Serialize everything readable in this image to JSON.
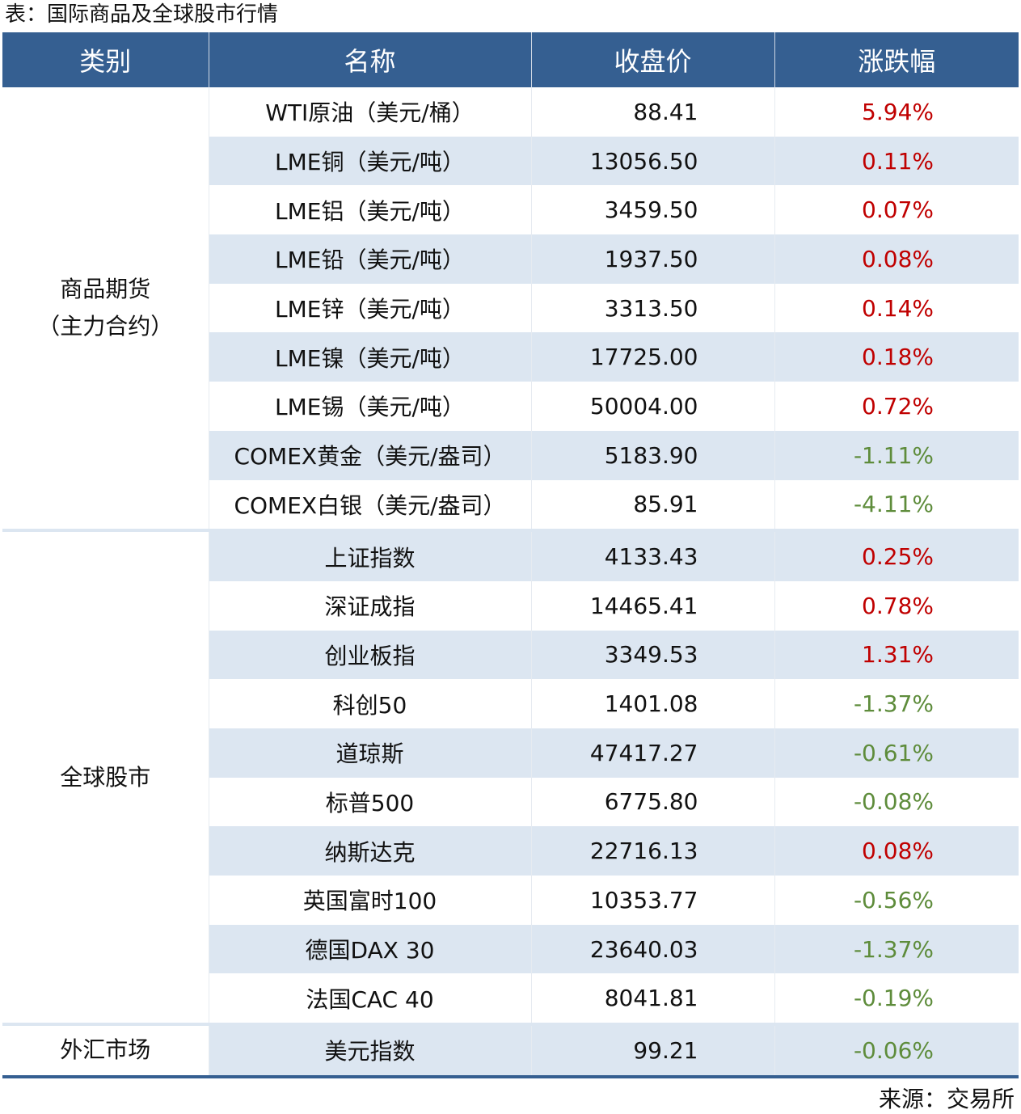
{
  "title": "表：国际商品及全球股市行情",
  "headers": [
    "类别",
    "名称",
    "收盘价",
    "涨跌幅"
  ],
  "colors": {
    "header_bg": "#355f91",
    "row_shade": "#dce6f1",
    "up": "#c00000",
    "down": "#5e8c3b"
  },
  "sections": [
    {
      "category_line1": "商品期货",
      "category_line2": "（主力合约）",
      "rows": [
        {
          "name": "WTI原油（美元/桶）",
          "close": "88.41",
          "change": "5.94%"
        },
        {
          "name": "LME铜（美元/吨）",
          "close": "13056.50",
          "change": "0.11%"
        },
        {
          "name": "LME铝（美元/吨）",
          "close": "3459.50",
          "change": "0.07%"
        },
        {
          "name": "LME铅（美元/吨）",
          "close": "1937.50",
          "change": "0.08%"
        },
        {
          "name": "LME锌（美元/吨）",
          "close": "3313.50",
          "change": "0.14%"
        },
        {
          "name": "LME镍（美元/吨）",
          "close": "17725.00",
          "change": "0.18%"
        },
        {
          "name": "LME锡（美元/吨）",
          "close": "50004.00",
          "change": "0.72%"
        },
        {
          "name": "COMEX黄金（美元/盎司）",
          "close": "5183.90",
          "change": "-1.11%"
        },
        {
          "name": "COMEX白银（美元/盎司）",
          "close": "85.91",
          "change": "-4.11%"
        }
      ]
    },
    {
      "category_line1": "全球股市",
      "category_line2": "",
      "rows": [
        {
          "name": "上证指数",
          "close": "4133.43",
          "change": "0.25%"
        },
        {
          "name": "深证成指",
          "close": "14465.41",
          "change": "0.78%"
        },
        {
          "name": "创业板指",
          "close": "3349.53",
          "change": "1.31%"
        },
        {
          "name": "科创50",
          "close": "1401.08",
          "change": "-1.37%"
        },
        {
          "name": "道琼斯",
          "close": "47417.27",
          "change": "-0.61%"
        },
        {
          "name": "标普500",
          "close": "6775.80",
          "change": "-0.08%"
        },
        {
          "name": "纳斯达克",
          "close": "22716.13",
          "change": "0.08%"
        },
        {
          "name": "英国富时100",
          "close": "10353.77",
          "change": "-0.56%"
        },
        {
          "name": "德国DAX 30",
          "close": "23640.03",
          "change": "-1.37%"
        },
        {
          "name": "法国CAC 40",
          "close": "8041.81",
          "change": "-0.19%"
        }
      ]
    },
    {
      "category_line1": "外汇市场",
      "category_line2": "",
      "rows": [
        {
          "name": "美元指数",
          "close": "99.21",
          "change": "-0.06%"
        }
      ]
    }
  ],
  "source": "来源：交易所"
}
